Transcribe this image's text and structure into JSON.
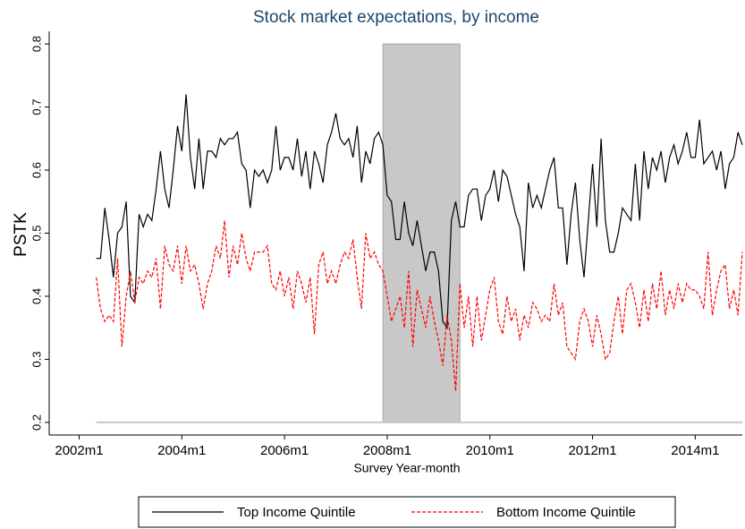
{
  "chart_data": {
    "type": "line",
    "title": "Stock market expectations, by income",
    "x_label": "Survey Year-month",
    "y_label": "PSTK",
    "x": [
      "2002m5",
      "2002m6",
      "2002m7",
      "2002m8",
      "2002m9",
      "2002m10",
      "2002m11",
      "2002m12",
      "2003m1",
      "2003m2",
      "2003m3",
      "2003m4",
      "2003m5",
      "2003m6",
      "2003m7",
      "2003m8",
      "2003m9",
      "2003m10",
      "2003m11",
      "2003m12",
      "2004m1",
      "2004m2",
      "2004m3",
      "2004m4",
      "2004m5",
      "2004m6",
      "2004m7",
      "2004m8",
      "2004m9",
      "2004m10",
      "2004m11",
      "2004m12",
      "2005m1",
      "2005m2",
      "2005m3",
      "2005m4",
      "2005m5",
      "2005m6",
      "2005m7",
      "2005m8",
      "2005m9",
      "2005m10",
      "2005m11",
      "2005m12",
      "2006m1",
      "2006m2",
      "2006m3",
      "2006m4",
      "2006m5",
      "2006m6",
      "2006m7",
      "2006m8",
      "2006m9",
      "2006m10",
      "2006m11",
      "2006m12",
      "2007m1",
      "2007m2",
      "2007m3",
      "2007m4",
      "2007m5",
      "2007m6",
      "2007m7",
      "2007m8",
      "2007m9",
      "2007m10",
      "2007m11",
      "2007m12",
      "2008m1",
      "2008m2",
      "2008m3",
      "2008m4",
      "2008m5",
      "2008m6",
      "2008m7",
      "2008m8",
      "2008m9",
      "2008m10",
      "2008m11",
      "2008m12",
      "2009m1",
      "2009m2",
      "2009m3",
      "2009m4",
      "2009m5",
      "2009m6",
      "2009m7",
      "2009m8",
      "2009m9",
      "2009m10",
      "2009m11",
      "2009m12",
      "2010m1",
      "2010m2",
      "2010m3",
      "2010m4",
      "2010m5",
      "2010m6",
      "2010m7",
      "2010m8",
      "2010m9",
      "2010m10",
      "2010m11",
      "2010m12",
      "2011m1",
      "2011m2",
      "2011m3",
      "2011m4",
      "2011m5",
      "2011m6",
      "2011m7",
      "2011m8",
      "2011m9",
      "2011m10",
      "2011m11",
      "2011m12",
      "2012m1",
      "2012m2",
      "2012m3",
      "2012m4",
      "2012m5",
      "2012m6",
      "2012m7",
      "2012m8",
      "2012m9",
      "2012m10",
      "2012m11",
      "2012m12",
      "2013m1",
      "2013m2",
      "2013m3",
      "2013m4",
      "2013m5",
      "2013m6",
      "2013m7",
      "2013m8",
      "2013m9",
      "2013m10",
      "2013m11",
      "2013m12",
      "2014m1",
      "2014m2",
      "2014m3",
      "2014m4",
      "2014m5",
      "2014m6",
      "2014m7",
      "2014m8",
      "2014m9",
      "2014m10",
      "2014m11",
      "2014m12"
    ],
    "series": [
      {
        "name": "Top Income Quintile",
        "color": "#000000",
        "dash": false,
        "values": [
          0.46,
          0.46,
          0.54,
          0.49,
          0.43,
          0.5,
          0.51,
          0.55,
          0.4,
          0.39,
          0.53,
          0.51,
          0.53,
          0.52,
          0.57,
          0.63,
          0.57,
          0.54,
          0.6,
          0.67,
          0.63,
          0.72,
          0.62,
          0.57,
          0.65,
          0.57,
          0.63,
          0.63,
          0.62,
          0.65,
          0.64,
          0.65,
          0.65,
          0.66,
          0.61,
          0.6,
          0.54,
          0.6,
          0.59,
          0.6,
          0.58,
          0.6,
          0.67,
          0.6,
          0.62,
          0.62,
          0.6,
          0.65,
          0.59,
          0.63,
          0.57,
          0.63,
          0.61,
          0.58,
          0.64,
          0.66,
          0.69,
          0.65,
          0.64,
          0.65,
          0.62,
          0.67,
          0.58,
          0.63,
          0.61,
          0.65,
          0.66,
          0.64,
          0.56,
          0.55,
          0.49,
          0.49,
          0.55,
          0.5,
          0.48,
          0.52,
          0.48,
          0.44,
          0.47,
          0.47,
          0.44,
          0.36,
          0.35,
          0.52,
          0.55,
          0.51,
          0.51,
          0.56,
          0.57,
          0.57,
          0.52,
          0.56,
          0.57,
          0.6,
          0.55,
          0.6,
          0.59,
          0.56,
          0.53,
          0.51,
          0.44,
          0.58,
          0.54,
          0.56,
          0.54,
          0.57,
          0.6,
          0.62,
          0.54,
          0.54,
          0.45,
          0.53,
          0.58,
          0.49,
          0.43,
          0.52,
          0.61,
          0.51,
          0.65,
          0.52,
          0.47,
          0.47,
          0.5,
          0.54,
          0.53,
          0.52,
          0.61,
          0.52,
          0.63,
          0.57,
          0.62,
          0.6,
          0.63,
          0.58,
          0.62,
          0.64,
          0.61,
          0.63,
          0.66,
          0.62,
          0.62,
          0.68,
          0.61,
          0.62,
          0.63,
          0.6,
          0.63,
          0.57,
          0.61,
          0.62,
          0.66,
          0.64
        ]
      },
      {
        "name": "Bottom Income Quintile",
        "color": "#ff0000",
        "dash": true,
        "values": [
          0.43,
          0.38,
          0.36,
          0.37,
          0.36,
          0.46,
          0.32,
          0.4,
          0.44,
          0.39,
          0.43,
          0.42,
          0.44,
          0.43,
          0.46,
          0.38,
          0.48,
          0.45,
          0.44,
          0.48,
          0.42,
          0.48,
          0.44,
          0.45,
          0.42,
          0.38,
          0.42,
          0.44,
          0.48,
          0.46,
          0.52,
          0.43,
          0.48,
          0.45,
          0.5,
          0.46,
          0.44,
          0.47,
          0.47,
          0.47,
          0.48,
          0.42,
          0.41,
          0.44,
          0.4,
          0.43,
          0.38,
          0.44,
          0.42,
          0.39,
          0.43,
          0.34,
          0.45,
          0.47,
          0.42,
          0.44,
          0.42,
          0.45,
          0.47,
          0.46,
          0.49,
          0.43,
          0.38,
          0.5,
          0.46,
          0.47,
          0.45,
          0.44,
          0.4,
          0.36,
          0.38,
          0.4,
          0.35,
          0.44,
          0.32,
          0.41,
          0.38,
          0.35,
          0.4,
          0.36,
          0.33,
          0.29,
          0.37,
          0.33,
          0.25,
          0.42,
          0.35,
          0.4,
          0.32,
          0.4,
          0.33,
          0.37,
          0.41,
          0.43,
          0.36,
          0.34,
          0.4,
          0.36,
          0.38,
          0.33,
          0.37,
          0.35,
          0.39,
          0.38,
          0.36,
          0.37,
          0.36,
          0.42,
          0.37,
          0.39,
          0.32,
          0.31,
          0.3,
          0.36,
          0.38,
          0.36,
          0.32,
          0.37,
          0.34,
          0.3,
          0.31,
          0.36,
          0.4,
          0.34,
          0.41,
          0.42,
          0.39,
          0.35,
          0.41,
          0.36,
          0.42,
          0.38,
          0.44,
          0.37,
          0.41,
          0.38,
          0.42,
          0.39,
          0.42,
          0.41,
          0.41,
          0.4,
          0.38,
          0.47,
          0.37,
          0.41,
          0.44,
          0.45,
          0.38,
          0.41,
          0.37,
          0.47
        ]
      }
    ],
    "shade": {
      "from": "2007m12",
      "to": "2009m6",
      "base": 0.2,
      "top": 0.8,
      "color": "#c8c8c8"
    },
    "xlim": [
      "2001m6",
      "2014m12"
    ],
    "xticks": [
      "2002m1",
      "2004m1",
      "2006m1",
      "2008m1",
      "2010m1",
      "2012m1",
      "2014m1"
    ],
    "ylim": [
      0.18,
      0.82
    ],
    "yticks": [
      0.2,
      0.3,
      0.4,
      0.5,
      0.6,
      0.7,
      0.8
    ],
    "legend": "bottom"
  }
}
